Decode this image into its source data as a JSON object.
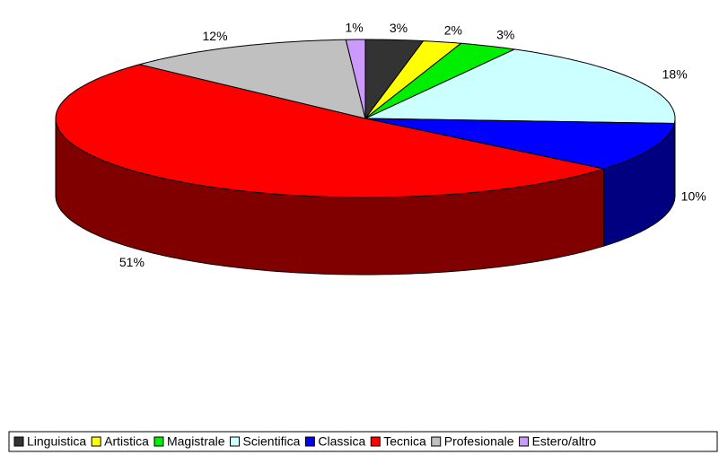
{
  "chart_data": {
    "type": "pie3d",
    "categories": [
      "Linguistica",
      "Artistica",
      "Magistrale",
      "Scientifica",
      "Classica",
      "Tecnica",
      "Profesionale",
      "Estero/altro"
    ],
    "values": [
      3,
      2,
      3,
      18,
      10,
      51,
      12,
      1
    ],
    "value_labels": [
      "3%",
      "2%",
      "3%",
      "18%",
      "10%",
      "51%",
      "12%",
      "1%"
    ],
    "colors": [
      "#333333",
      "#ffff00",
      "#00ee00",
      "#ccffff",
      "#0000ff",
      "#ff0000",
      "#c0c0c0",
      "#cc99ff"
    ],
    "legend": "bottom"
  }
}
